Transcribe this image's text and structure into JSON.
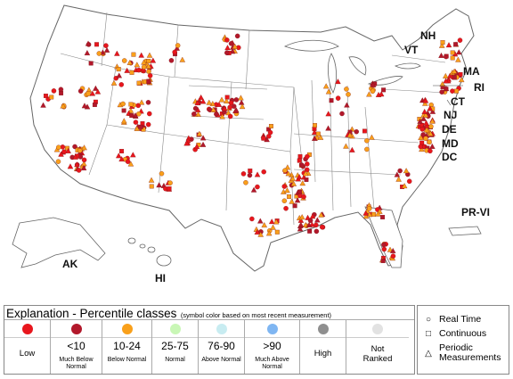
{
  "labels": {
    "NH": "NH",
    "VT": "VT",
    "MA": "MA",
    "RI": "RI",
    "CT": "CT",
    "NJ": "NJ",
    "DE": "DE",
    "MD": "MD",
    "DC": "DC",
    "PRVI": "PR-VI",
    "AK": "AK",
    "HI": "HI"
  },
  "legend": {
    "title": "Explanation - Percentile classes",
    "note": "(symbol color based on most recent measurement)",
    "classes": [
      {
        "label": "Low",
        "sub": "",
        "color": "#e8161d"
      },
      {
        "label": "<10",
        "sub": "Much Below Normal",
        "color": "#b2182b"
      },
      {
        "label": "10-24",
        "sub": "Below Normal",
        "color": "#f9a01b"
      },
      {
        "label": "25-75",
        "sub": "Normal",
        "color": "#c9f7b6"
      },
      {
        "label": "76-90",
        "sub": "Above Normal",
        "color": "#c8ecf1"
      },
      {
        "label": ">90",
        "sub": "Much Above Normal",
        "color": "#7fb6f2"
      },
      {
        "label": "High",
        "sub": "",
        "color": "#8f8f8f"
      },
      {
        "label": "Not Ranked",
        "sub": "",
        "color": "#e2e2e2"
      }
    ]
  },
  "symbols": {
    "real_time": "Real Time",
    "continuous": "Continuous",
    "periodic": "Periodic Measurements"
  }
}
